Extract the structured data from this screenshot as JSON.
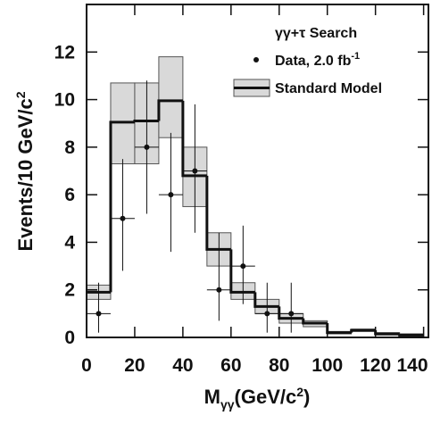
{
  "chart_data": {
    "type": "histogram",
    "legend_title": "γγ+τ Search",
    "x_label": [
      "M",
      "γγ",
      "(GeV/c",
      "2",
      ")"
    ],
    "y_label": [
      "Events/10 GeV/c",
      "2"
    ],
    "bins": [
      0,
      10,
      20,
      30,
      40,
      50,
      60,
      70,
      80,
      90,
      100,
      110,
      120,
      130,
      140
    ],
    "model": {
      "name": "Standard Model",
      "color": "#111111",
      "band_color": "#d9d9d9",
      "values": [
        1.9,
        9.05,
        9.1,
        9.95,
        6.8,
        3.7,
        1.9,
        1.3,
        0.8,
        0.6,
        0.2,
        0.3,
        0.15,
        0.1
      ],
      "band_low": [
        1.6,
        7.3,
        7.3,
        8.4,
        5.5,
        3.0,
        1.6,
        1.0,
        0.6,
        0.45,
        0.15,
        0.25,
        0.1,
        0.05
      ],
      "band_high": [
        2.2,
        10.7,
        10.7,
        11.8,
        8.0,
        4.4,
        2.3,
        1.6,
        1.0,
        0.7,
        0.25,
        0.35,
        0.2,
        0.15
      ]
    },
    "data": {
      "name": "Data, 2.0 fb",
      "exponent": "-1",
      "color": "#111111",
      "x": [
        5,
        15,
        25,
        35,
        45,
        55,
        65,
        75,
        85
      ],
      "values": [
        1,
        5,
        8,
        6,
        7,
        2,
        3,
        1,
        1
      ],
      "err_low": [
        0.8,
        2.2,
        2.8,
        2.4,
        2.6,
        1.3,
        1.6,
        0.8,
        0.8
      ],
      "err_high": [
        1.3,
        2.5,
        2.8,
        2.6,
        2.8,
        2.4,
        1.7,
        1.3,
        1.3
      ]
    },
    "xlim": [
      0,
      142
    ],
    "ylim": [
      0,
      14
    ],
    "xticks": [
      0,
      20,
      40,
      60,
      80,
      100,
      120,
      140
    ],
    "yticks": [
      0,
      2,
      4,
      6,
      8,
      10,
      12
    ]
  }
}
